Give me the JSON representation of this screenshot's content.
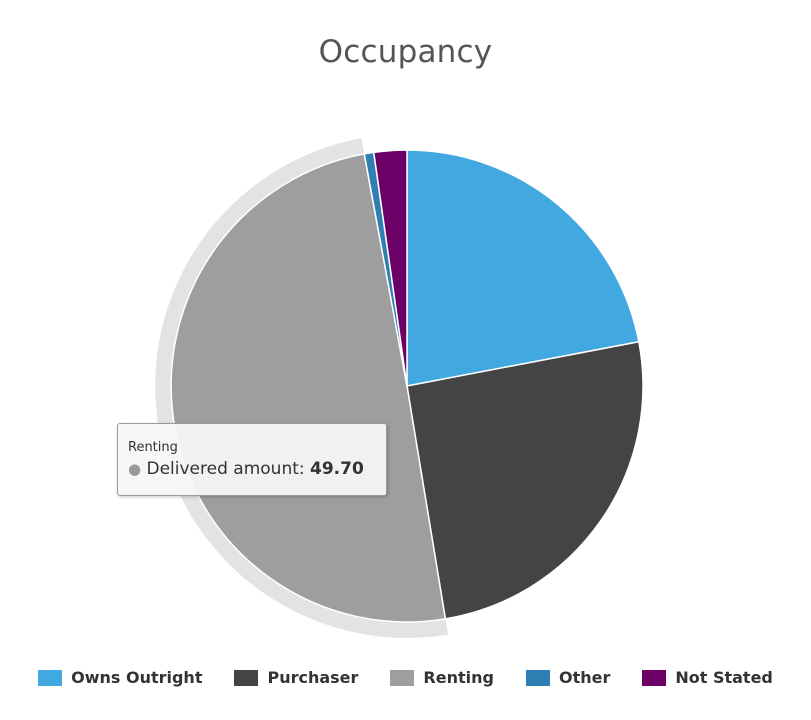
{
  "chart_data": {
    "type": "pie",
    "title": "Occupancy",
    "series_name": "Delivered amount",
    "categories": [
      "Owns Outright",
      "Purchaser",
      "Renting",
      "Other",
      "Not Stated"
    ],
    "values": [
      22.0,
      25.4,
      49.7,
      0.65,
      2.25
    ],
    "colors": [
      "#41a9e0",
      "#444444",
      "#9e9e9e",
      "#2f7eb4",
      "#6b0066"
    ],
    "legend_position": "bottom",
    "hovered_index": 2
  },
  "tooltip": {
    "category": "Renting",
    "label": "Delivered amount:",
    "value": "49.70"
  }
}
